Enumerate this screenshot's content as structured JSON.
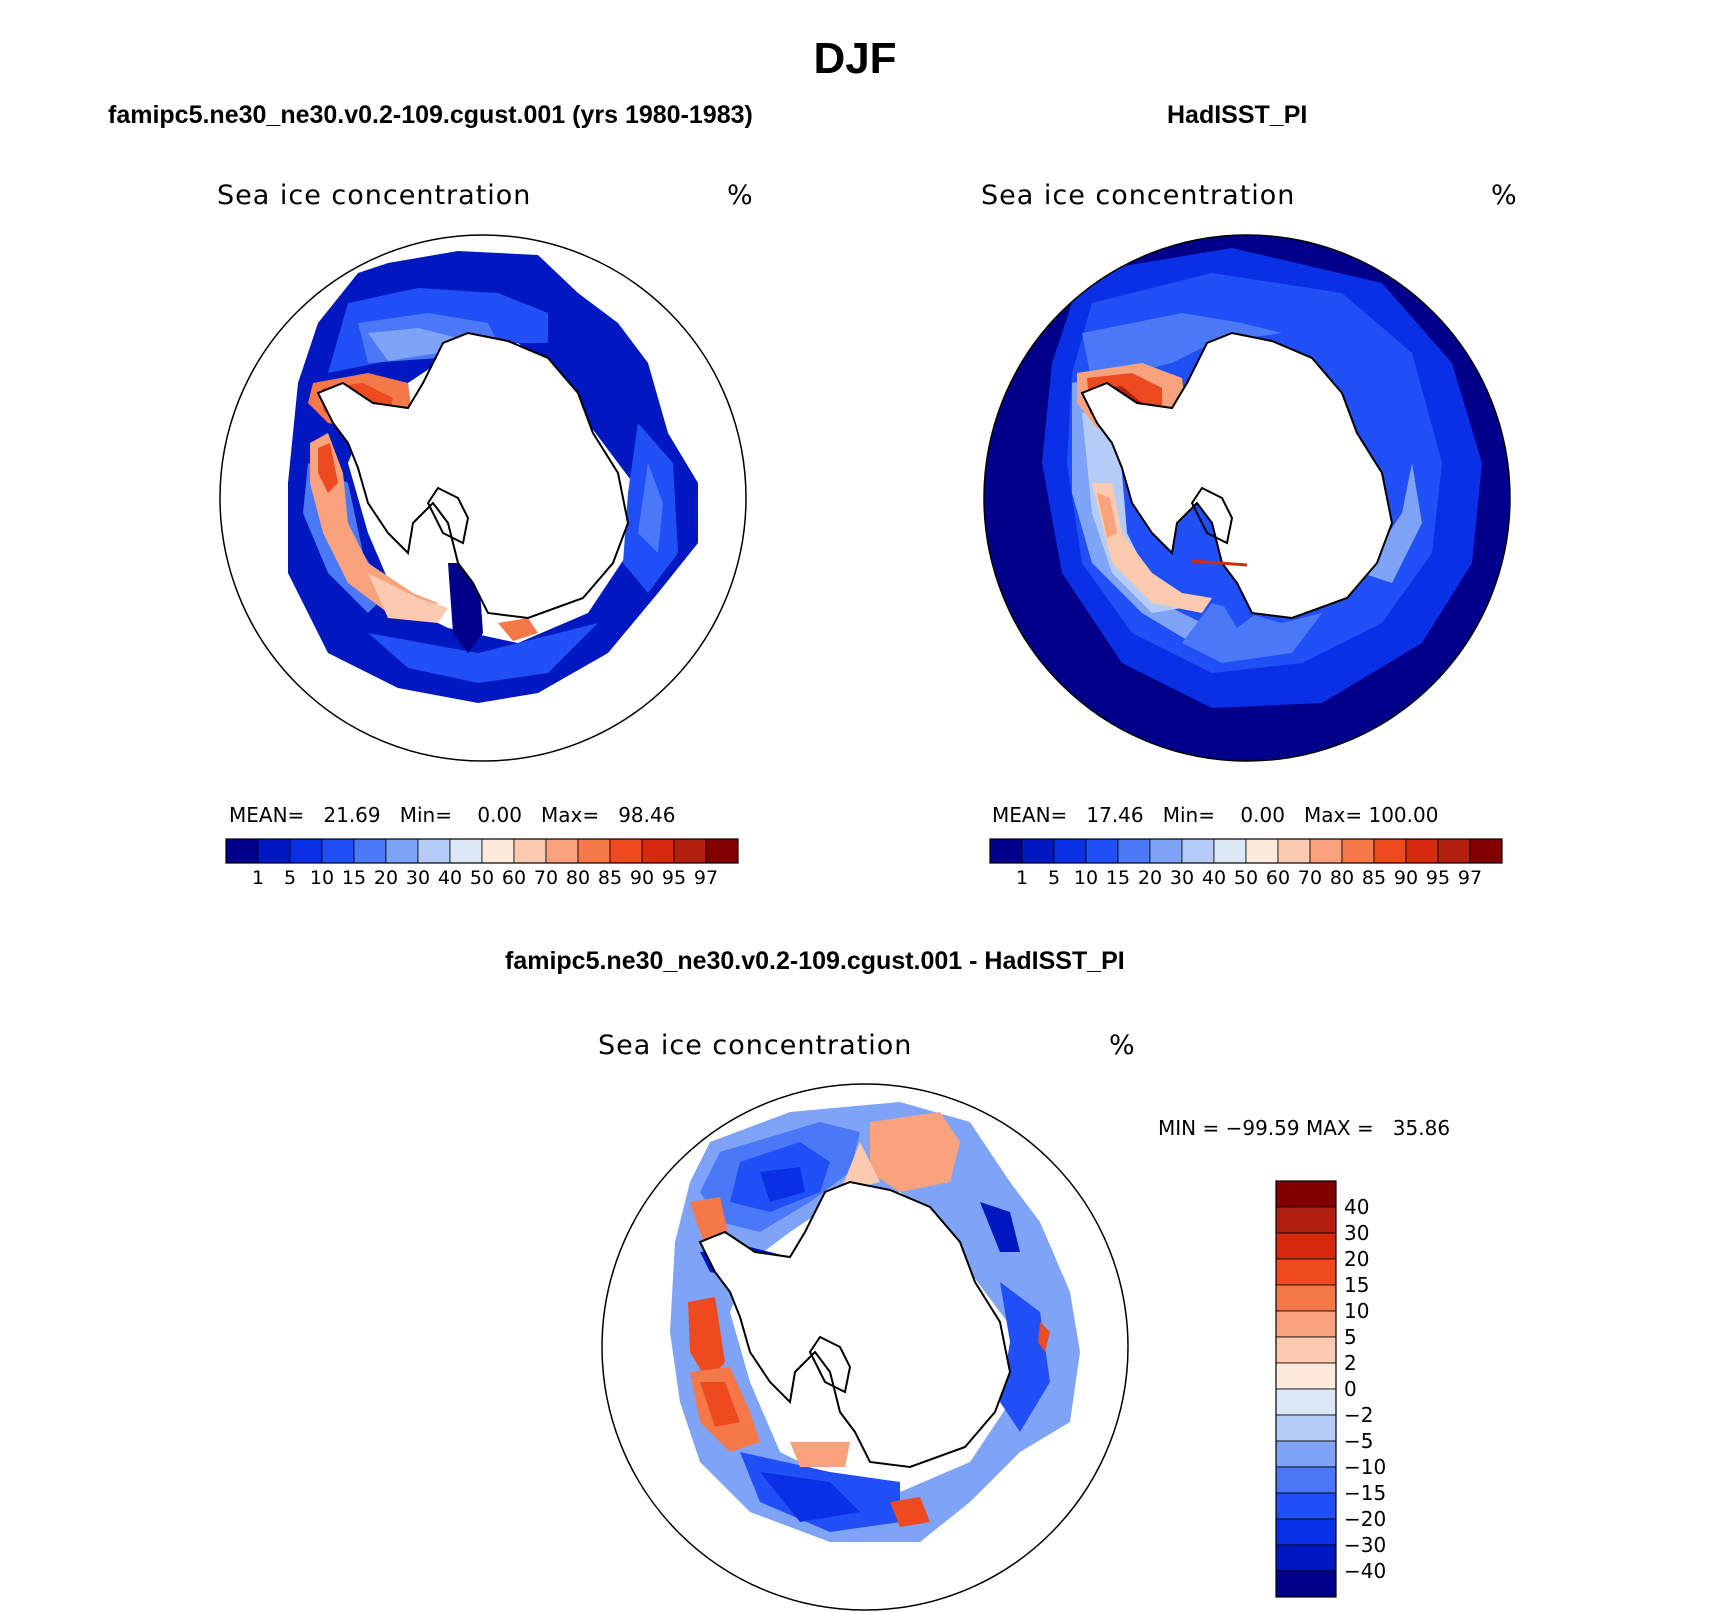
{
  "title": "DJF",
  "panels": [
    {
      "title": "famipc5.ne30_ne30.v0.2-109.cgust.001 (yrs 1980-1983)",
      "variable": "Sea ice concentration",
      "units": "%",
      "stats": {
        "mean_label": "MEAN=",
        "mean": "21.69",
        "min_label": "Min=",
        "min": "0.00",
        "max_label": "Max=",
        "max": "98.46"
      }
    },
    {
      "title": "HadISST_PI",
      "variable": "Sea ice concentration",
      "units": "%",
      "stats": {
        "mean_label": "MEAN=",
        "mean": "17.46",
        "min_label": "Min=",
        "min": "0.00",
        "max_label": "Max=",
        "max": "100.00"
      }
    }
  ],
  "diff_panel": {
    "title": "famipc5.ne30_ne30.v0.2-109.cgust.001 - HadISST_PI",
    "variable": "Sea ice concentration",
    "units": "%",
    "minmax": "MIN = −99.59 MAX =   35.86"
  },
  "chart_data": {
    "type": "heatmap",
    "projection": "south-polar-stereographic",
    "colorbars": [
      {
        "orientation": "horizontal",
        "levels": [
          "1",
          "5",
          "10",
          "15",
          "20",
          "30",
          "40",
          "50",
          "60",
          "70",
          "80",
          "85",
          "90",
          "95",
          "97"
        ],
        "colors": [
          "#00008b",
          "#0018c0",
          "#0a30e6",
          "#1f4ff5",
          "#4a78f7",
          "#7ea3f7",
          "#b4ccf7",
          "#dde8f7",
          "#fdeadb",
          "#fccab0",
          "#f9a27e",
          "#f57848",
          "#ee4a1f",
          "#d52a0e",
          "#b1200e",
          "#820000"
        ]
      },
      {
        "orientation": "vertical",
        "levels": [
          "40",
          "30",
          "20",
          "15",
          "10",
          "5",
          "2",
          "0",
          "−2",
          "−5",
          "−10",
          "−15",
          "−20",
          "−30",
          "−40"
        ],
        "colors": [
          "#820000",
          "#b1200e",
          "#d52a0e",
          "#ee4a1f",
          "#f57848",
          "#f9a27e",
          "#fccab0",
          "#fdeadb",
          "#dde8f7",
          "#b4ccf7",
          "#7ea3f7",
          "#4a78f7",
          "#1f4ff5",
          "#0a30e6",
          "#0018c0",
          "#00008b"
        ]
      }
    ]
  }
}
